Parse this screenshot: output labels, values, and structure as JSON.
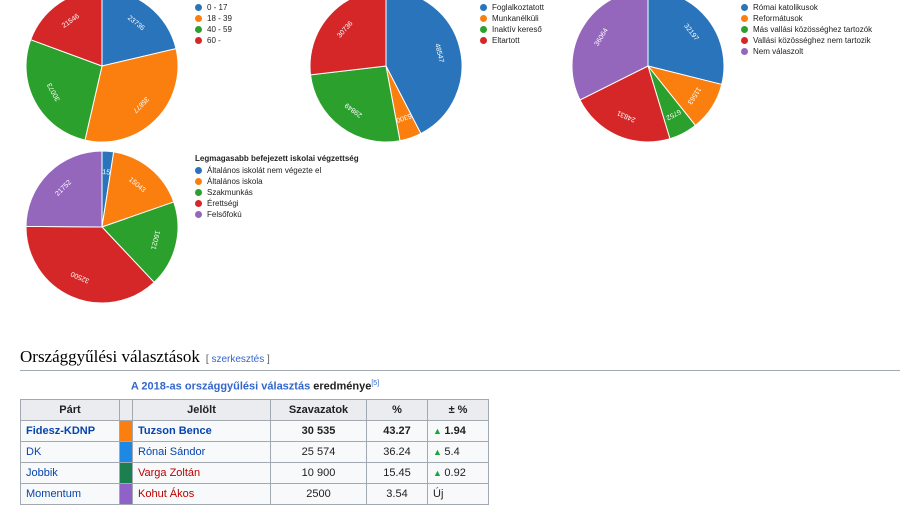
{
  "colors": {
    "blue": "#2a74bb",
    "orange": "#fb7f0e",
    "green": "#2ca02c",
    "red": "#d62728",
    "purple": "#9467bd"
  },
  "pies": [
    {
      "id": "age",
      "slices": [
        {
          "value": 23736,
          "color": "blue"
        },
        {
          "value": 35877,
          "color": "orange"
        },
        {
          "value": 30073,
          "color": "green"
        },
        {
          "value": 21546,
          "color": "red"
        }
      ],
      "legend": {
        "title": "",
        "items": [
          "0 - 17",
          "18 - 39",
          "40 - 59",
          "60 -"
        ]
      }
    },
    {
      "id": "employment",
      "slices": [
        {
          "value": 48547,
          "color": "blue"
        },
        {
          "value": 5300,
          "color": "orange"
        },
        {
          "value": 29849,
          "color": "green"
        },
        {
          "value": 30736,
          "color": "red"
        }
      ],
      "legend": {
        "title": "",
        "items": [
          "Foglalkoztatott",
          "Munkanélküli",
          "Inaktív kereső",
          "Eltartott"
        ]
      }
    },
    {
      "id": "religion",
      "slices": [
        {
          "value": 32197,
          "color": "blue"
        },
        {
          "value": 11563,
          "color": "orange"
        },
        {
          "value": 6752,
          "color": "green"
        },
        {
          "value": 24831,
          "color": "red"
        },
        {
          "value": 36064,
          "color": "purple"
        }
      ],
      "legend": {
        "title": "",
        "items": [
          "Római katolikusok",
          "Reformátusok",
          "Más vallási közösséghez tartozók",
          "Vallási közösséghez nem tartozik",
          "Nem válaszolt"
        ]
      }
    },
    {
      "id": "education",
      "slices": [
        {
          "value": 2150,
          "color": "blue"
        },
        {
          "value": 15043,
          "color": "orange"
        },
        {
          "value": 16021,
          "color": "green"
        },
        {
          "value": 32500,
          "color": "red"
        },
        {
          "value": 21752,
          "color": "purple"
        }
      ],
      "legend": {
        "title": "Legmagasabb befejezett iskolai végzettség",
        "items": [
          "Általános iskolát nem végezte el",
          "Általános iskola",
          "Szakmunkás",
          "Érettségi",
          "Felsőfokú"
        ]
      }
    }
  ],
  "section": {
    "title": "Országgyűlési választások",
    "edit_link": "szerkesztés"
  },
  "table": {
    "caption_pre": "A 2018-as ",
    "caption_link": "országgyűlési választás",
    "caption_post": " eredménye",
    "caption_ref": "[5]",
    "headers": [
      "Párt",
      "Jelölt",
      "Szavazatok",
      "%",
      "± %"
    ],
    "rows": [
      {
        "party": "Fidesz-KDNP",
        "color": "#fb7f0e",
        "candidate": "Tuzson Bence",
        "votes": "30 535",
        "pct": "43.27",
        "arrow": "▲",
        "change": "1.94",
        "bold": true,
        "cand_red": false
      },
      {
        "party": "DK",
        "color": "#1e88e5",
        "candidate": "Rónai Sándor",
        "votes": "25 574",
        "pct": "36.24",
        "arrow": "▲",
        "change": "5.4",
        "bold": false,
        "cand_red": false
      },
      {
        "party": "Jobbik",
        "color": "#1b7f4f",
        "candidate": "Varga Zoltán",
        "votes": "10 900",
        "pct": "15.45",
        "arrow": "▲",
        "change": "0.92",
        "bold": false,
        "cand_red": true
      },
      {
        "party": "Momentum",
        "color": "#8e62c6",
        "candidate": "Kohut Ákos",
        "votes": "2500",
        "pct": "3.54",
        "arrow": "",
        "change": "Új",
        "bold": false,
        "cand_red": true
      }
    ]
  }
}
